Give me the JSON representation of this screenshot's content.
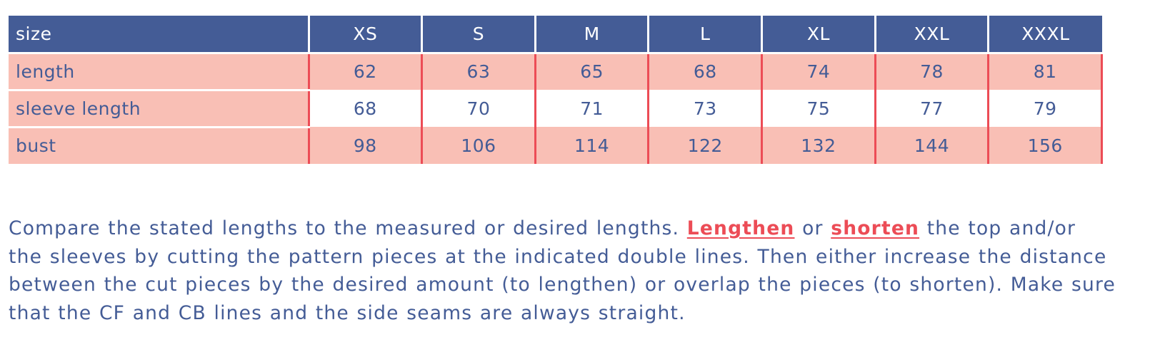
{
  "table": {
    "header_label": "size",
    "sizes": [
      "XS",
      "S",
      "M",
      "L",
      "XL",
      "XXL",
      "XXXL"
    ],
    "rows": [
      {
        "label": "length",
        "values": [
          "62",
          "63",
          "65",
          "68",
          "74",
          "78",
          "81"
        ]
      },
      {
        "label": "sleeve length",
        "values": [
          "68",
          "70",
          "71",
          "73",
          "75",
          "77",
          "79"
        ]
      },
      {
        "label": "bust",
        "values": [
          "98",
          "106",
          "114",
          "122",
          "132",
          "144",
          "156"
        ]
      }
    ]
  },
  "instructions": {
    "line1_a": "Compare the stated lengths to the measured or desired lengths.",
    "lengthen_link": "Lengthen",
    "or_word": "or",
    "shorten_link": "shorten",
    "line1_b": "the top and/or",
    "line2": "the sleeves by cutting the pattern pieces at the indicated double lines. Then either increase the distance",
    "line3": "between the cut pieces by the desired amount (to lengthen) or overlap the pieces (to shorten). Make sure",
    "line4": "that the CF and CB lines and the side seams are always straight."
  },
  "colors": {
    "header_bg": "#445c96",
    "row_shade": "#f9bfb5",
    "divider": "#ec4c56",
    "text": "#445c96",
    "link": "#ec4c56"
  }
}
